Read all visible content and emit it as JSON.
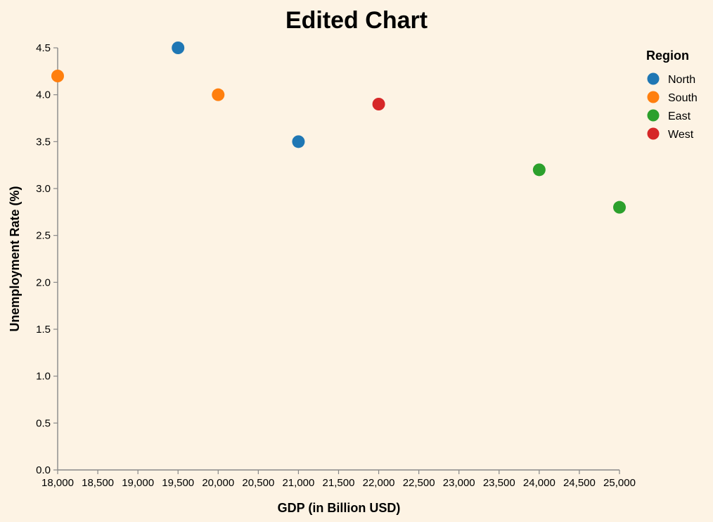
{
  "chart_data": {
    "type": "scatter",
    "title": "Edited Chart",
    "xlabel": "GDP (in Billion USD)",
    "ylabel": "Unemployment Rate (%)",
    "xlim": [
      18000,
      25000
    ],
    "ylim": [
      0,
      4.5
    ],
    "x_ticks": [
      "18,000",
      "18,500",
      "19,000",
      "19,500",
      "20,000",
      "20,500",
      "21,000",
      "21,500",
      "22,000",
      "22,500",
      "23,000",
      "23,500",
      "24,000",
      "24,500",
      "25,000"
    ],
    "y_ticks": [
      "0.0",
      "0.5",
      "1.0",
      "1.5",
      "2.0",
      "2.5",
      "3.0",
      "3.5",
      "4.0",
      "4.5"
    ],
    "grid": false,
    "legend": {
      "title": "Region",
      "placement": "top-right",
      "entries": [
        {
          "name": "North",
          "color": "#1f77b4"
        },
        {
          "name": "South",
          "color": "#ff7f0e"
        },
        {
          "name": "East",
          "color": "#2ca02c"
        },
        {
          "name": "West",
          "color": "#d62728"
        }
      ]
    },
    "series": [
      {
        "name": "North",
        "color": "#1f77b4",
        "points": [
          {
            "x": 19500,
            "y": 4.5
          },
          {
            "x": 21000,
            "y": 3.5
          }
        ]
      },
      {
        "name": "South",
        "color": "#ff7f0e",
        "points": [
          {
            "x": 18000,
            "y": 4.2
          },
          {
            "x": 20000,
            "y": 4.0
          }
        ]
      },
      {
        "name": "East",
        "color": "#2ca02c",
        "points": [
          {
            "x": 24000,
            "y": 3.2
          },
          {
            "x": 25000,
            "y": 2.8
          }
        ]
      },
      {
        "name": "West",
        "color": "#d62728",
        "points": [
          {
            "x": 22000,
            "y": 3.9
          }
        ]
      }
    ]
  }
}
